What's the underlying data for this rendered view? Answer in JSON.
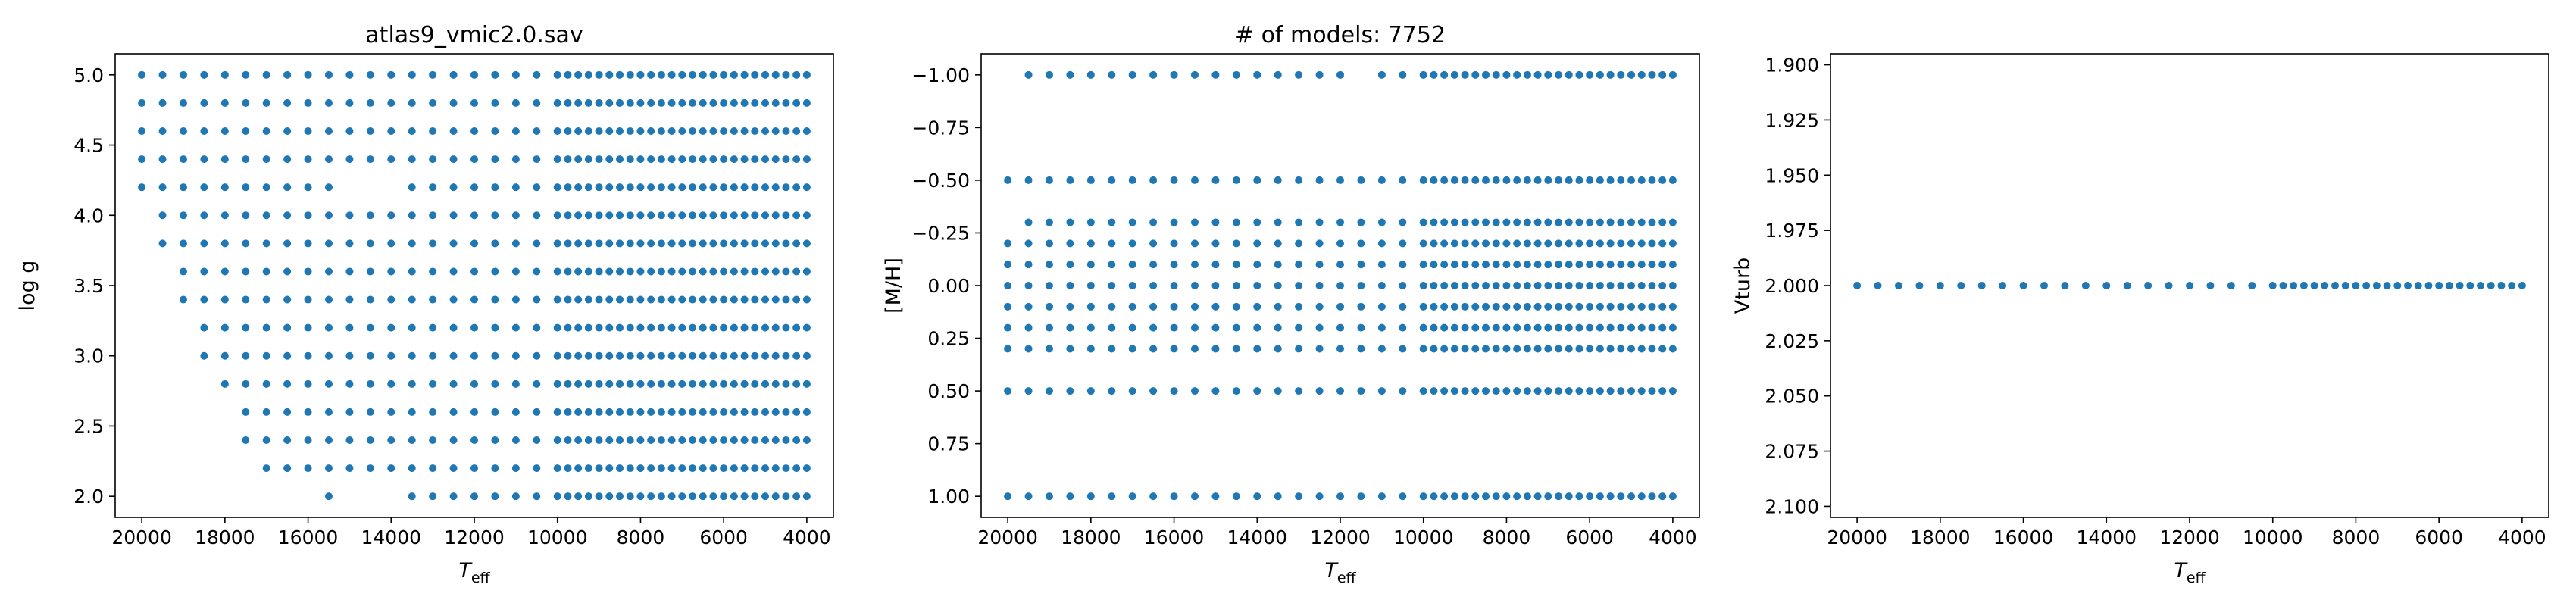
{
  "colors": {
    "marker": "#1f77b4",
    "axes": "#000000",
    "background": "#ffffff"
  },
  "chart_data": [
    {
      "id": "logg",
      "type": "scatter",
      "title": "atlas9_vmic2.0.sav",
      "xlabel": "T",
      "xlabel_sub": "eff",
      "ylabel": "log g",
      "xlim": [
        20640,
        3360
      ],
      "ylim": [
        5.15,
        1.85
      ],
      "y_inverted": true,
      "x_inverted": true,
      "xticks": [
        20000,
        18000,
        16000,
        14000,
        12000,
        10000,
        8000,
        6000,
        4000
      ],
      "yticks": [
        2.0,
        2.5,
        3.0,
        3.5,
        4.0,
        4.5,
        5.0
      ],
      "ytick_labels": [
        "2.0",
        "2.5",
        "3.0",
        "3.5",
        "4.0",
        "4.5",
        "5.0"
      ],
      "series": [
        {
          "x_coarse": [
            20000,
            19500,
            19000,
            18500,
            18000,
            17500,
            17000,
            16500,
            16000,
            15500,
            15000,
            14500,
            14000,
            13500,
            13000,
            12500,
            12000,
            11500,
            11000,
            10500
          ],
          "x_fine": [
            10000,
            9750,
            9500,
            9250,
            9000,
            8750,
            8500,
            8250,
            8000,
            7750,
            7500,
            7250,
            7000,
            6750,
            6500,
            6250,
            6000,
            5750,
            5500,
            5250,
            5000,
            4750,
            4500,
            4250,
            4000
          ],
          "logg_levels": [
            2.0,
            2.2,
            2.4,
            2.6,
            2.8,
            3.0,
            3.2,
            3.4,
            3.6,
            3.8,
            4.0,
            4.2,
            4.4,
            4.6,
            4.8,
            5.0
          ],
          "row_min_teff": {
            "2.0": 13500,
            "2.2": 17000,
            "2.4": 17500,
            "2.6": 17500,
            "2.8": 18000,
            "3.0": 18500,
            "3.2": 18500,
            "3.4": 19000,
            "3.6": 19000,
            "3.8": 19500,
            "4.0": 19500,
            "4.2": 20000,
            "4.4": 20000,
            "4.6": 20000,
            "4.8": 20000,
            "5.0": 20000
          },
          "extra_points": [
            [
              15500,
              2.0
            ]
          ],
          "missing_points": [
            [
              15000,
              4.2
            ],
            [
              14500,
              4.2
            ],
            [
              14000,
              4.2
            ]
          ]
        }
      ]
    },
    {
      "id": "mh",
      "type": "scatter",
      "title": "# of models: 7752",
      "xlabel": "T",
      "xlabel_sub": "eff",
      "ylabel": "[M/H]",
      "xlim": [
        20640,
        3360
      ],
      "ylim": [
        -1.1,
        1.1
      ],
      "x_inverted": true,
      "xticks": [
        20000,
        18000,
        16000,
        14000,
        12000,
        10000,
        8000,
        6000,
        4000
      ],
      "yticks": [
        1.0,
        0.75,
        0.5,
        0.25,
        0.0,
        -0.25,
        -0.5,
        -0.75,
        -1.0
      ],
      "ytick_labels": [
        "1.00",
        "0.75",
        "0.50",
        "0.25",
        "0.00",
        "−0.25",
        "−0.50",
        "−0.75",
        "−1.00"
      ],
      "series": [
        {
          "mh_levels": [
            1.0,
            0.5,
            0.3,
            0.2,
            0.1,
            0.0,
            -0.1,
            -0.2,
            -0.3,
            -0.5,
            -1.0
          ],
          "row_min_teff": {
            "1.0": 20000,
            "0.5": 20000,
            "0.3": 20000,
            "0.2": 20000,
            "0.1": 20000,
            "0.0": 20000,
            "-0.1": 20000,
            "-0.2": 20000,
            "-0.3": 19500,
            "-0.5": 20000,
            "-1.0": 19500
          },
          "missing_points": [
            [
              11500,
              -1.0
            ]
          ]
        }
      ]
    },
    {
      "id": "vturb",
      "type": "scatter",
      "title": "",
      "xlabel": "T",
      "xlabel_sub": "eff",
      "ylabel": "Vturb",
      "xlim": [
        20640,
        3360
      ],
      "ylim": [
        1.895,
        2.105
      ],
      "x_inverted": true,
      "xticks": [
        20000,
        18000,
        16000,
        14000,
        12000,
        10000,
        8000,
        6000,
        4000
      ],
      "yticks": [
        2.1,
        2.075,
        2.05,
        2.025,
        2.0,
        1.975,
        1.95,
        1.925,
        1.9
      ],
      "ytick_labels": [
        "2.100",
        "2.075",
        "2.050",
        "2.025",
        "2.000",
        "1.975",
        "1.950",
        "1.925",
        "1.900"
      ],
      "series": [
        {
          "vturb": 2.0
        }
      ]
    }
  ]
}
